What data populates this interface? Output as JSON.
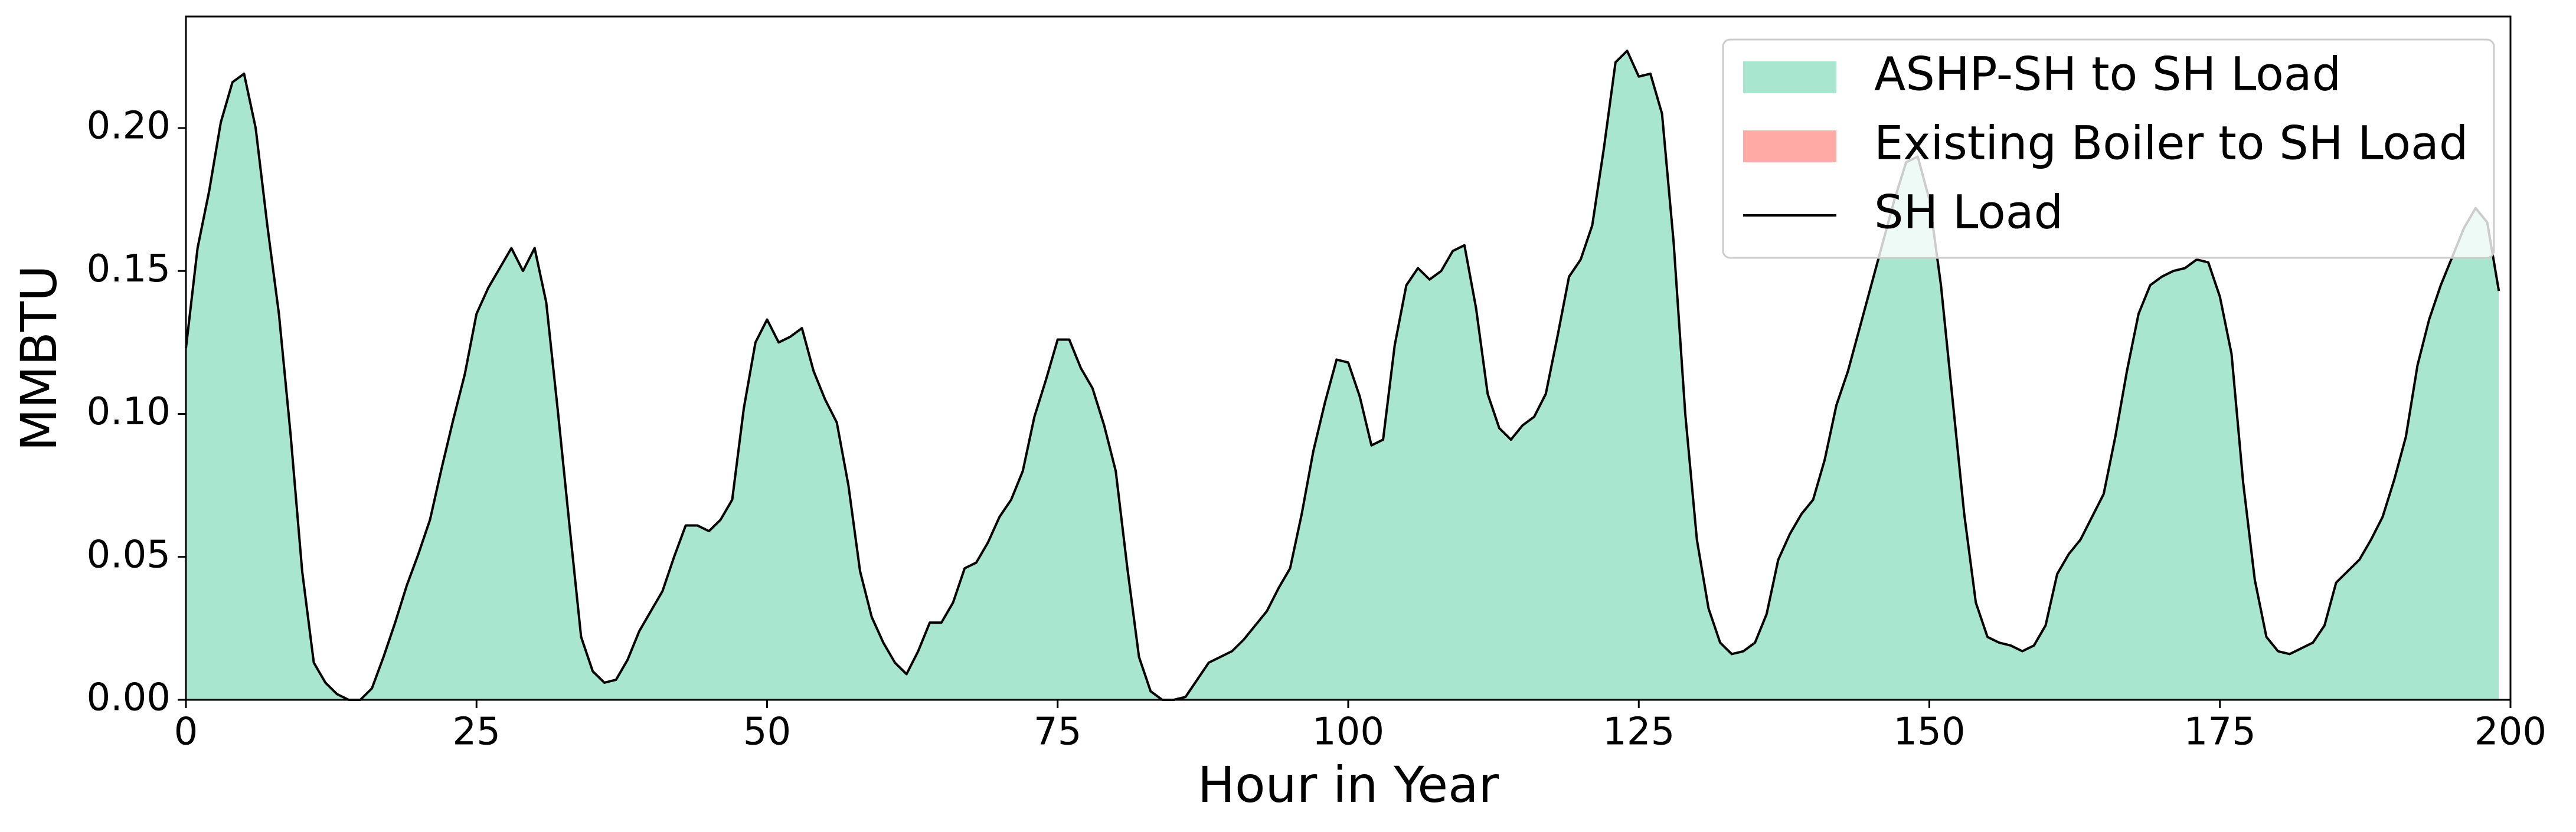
{
  "chart_data": {
    "type": "stacked_area",
    "x_label": "Hour in Year",
    "y_label": "MMBTU",
    "xlim": [
      0,
      200
    ],
    "ylim": [
      0,
      0.239
    ],
    "xticks": [
      0,
      25,
      50,
      75,
      100,
      125,
      150,
      175,
      200
    ],
    "yticks": [
      {
        "value": 0,
        "label": "0.00"
      },
      {
        "value": 0.05,
        "label": "0.05"
      },
      {
        "value": 0.1,
        "label": "0.10"
      },
      {
        "value": 0.15,
        "label": "0.15"
      },
      {
        "value": 0.2,
        "label": "0.20"
      }
    ],
    "legend": "upper right",
    "x": [
      0,
      1,
      2,
      3,
      4,
      5,
      6,
      7,
      8,
      9,
      10,
      11,
      12,
      13,
      14,
      15,
      16,
      17,
      18,
      19,
      20,
      21,
      22,
      23,
      24,
      25,
      26,
      27,
      28,
      29,
      30,
      31,
      32,
      33,
      34,
      35,
      36,
      37,
      38,
      39,
      40,
      41,
      42,
      43,
      44,
      45,
      46,
      47,
      48,
      49,
      50,
      51,
      52,
      53,
      54,
      55,
      56,
      57,
      58,
      59,
      60,
      61,
      62,
      63,
      64,
      65,
      66,
      67,
      68,
      69,
      70,
      71,
      72,
      73,
      74,
      75,
      76,
      77,
      78,
      79,
      80,
      81,
      82,
      83,
      84,
      85,
      86,
      87,
      88,
      89,
      90,
      91,
      92,
      93,
      94,
      95,
      96,
      97,
      98,
      99,
      100,
      101,
      102,
      103,
      104,
      105,
      106,
      107,
      108,
      109,
      110,
      111,
      112,
      113,
      114,
      115,
      116,
      117,
      118,
      119,
      120,
      121,
      122,
      123,
      124,
      125,
      126,
      127,
      128,
      129,
      130,
      131,
      132,
      133,
      134,
      135,
      136,
      137,
      138,
      139,
      140,
      141,
      142,
      143,
      144,
      145,
      146,
      147,
      148,
      149,
      150,
      151,
      152,
      153,
      154,
      155,
      156,
      157,
      158,
      159,
      160,
      161,
      162,
      163,
      164,
      165,
      166,
      167,
      168,
      169,
      170,
      171,
      172,
      173,
      174,
      175,
      176,
      177,
      178,
      179,
      180,
      181,
      182,
      183,
      184,
      185,
      186,
      187,
      188,
      189,
      190,
      191,
      192,
      193,
      194,
      195,
      196,
      197,
      198,
      199
    ],
    "series": [
      {
        "name": "ASHP-SH to SH Load",
        "color": "#a8e6cf",
        "kind": "area",
        "values": [
          0.123,
          0.158,
          0.178,
          0.202,
          0.216,
          0.219,
          0.2,
          0.166,
          0.135,
          0.093,
          0.045,
          0.013,
          0.006,
          0.002,
          0,
          0,
          0.004,
          0.015,
          0.027,
          0.04,
          0.051,
          0.063,
          0.081,
          0.098,
          0.114,
          0.135,
          0.144,
          0.151,
          0.158,
          0.15,
          0.158,
          0.139,
          0.101,
          0.061,
          0.022,
          0.01,
          0.006,
          0.007,
          0.014,
          0.024,
          0.031,
          0.038,
          0.05,
          0.061,
          0.061,
          0.059,
          0.063,
          0.07,
          0.102,
          0.125,
          0.133,
          0.125,
          0.127,
          0.13,
          0.115,
          0.105,
          0.097,
          0.075,
          0.045,
          0.029,
          0.02,
          0.013,
          0.009,
          0.017,
          0.027,
          0.027,
          0.034,
          0.046,
          0.048,
          0.055,
          0.064,
          0.07,
          0.08,
          0.099,
          0.112,
          0.126,
          0.126,
          0.116,
          0.109,
          0.096,
          0.08,
          0.046,
          0.015,
          0.003,
          0,
          0,
          0.001,
          0.007,
          0.013,
          0.015,
          0.017,
          0.021,
          0.026,
          0.031,
          0.039,
          0.046,
          0.065,
          0.087,
          0.104,
          0.119,
          0.118,
          0.106,
          0.089,
          0.091,
          0.124,
          0.145,
          0.151,
          0.147,
          0.15,
          0.157,
          0.159,
          0.137,
          0.107,
          0.095,
          0.091,
          0.096,
          0.099,
          0.107,
          0.127,
          0.148,
          0.154,
          0.166,
          0.193,
          0.223,
          0.227,
          0.218,
          0.219,
          0.205,
          0.16,
          0.1,
          0.056,
          0.032,
          0.02,
          0.016,
          0.017,
          0.02,
          0.03,
          0.049,
          0.058,
          0.065,
          0.07,
          0.084,
          0.103,
          0.115,
          0.13,
          0.145,
          0.16,
          0.175,
          0.188,
          0.19,
          0.175,
          0.145,
          0.105,
          0.065,
          0.034,
          0.022,
          0.02,
          0.019,
          0.017,
          0.019,
          0.026,
          0.044,
          0.051,
          0.056,
          0.064,
          0.072,
          0.092,
          0.115,
          0.135,
          0.145,
          0.148,
          0.15,
          0.151,
          0.154,
          0.153,
          0.141,
          0.121,
          0.076,
          0.042,
          0.022,
          0.017,
          0.016,
          0.018,
          0.02,
          0.026,
          0.041,
          0.045,
          0.049,
          0.056,
          0.064,
          0.077,
          0.092,
          0.117,
          0.133,
          0.145,
          0.155,
          0.165,
          0.172,
          0.167,
          0.143
        ]
      },
      {
        "name": "Existing Boiler to SH Load",
        "color": "#ffaaa5",
        "kind": "area",
        "values": [
          0,
          0,
          0,
          0,
          0,
          0,
          0,
          0,
          0,
          0,
          0,
          0,
          0,
          0,
          0,
          0,
          0,
          0,
          0,
          0,
          0,
          0,
          0,
          0,
          0,
          0,
          0,
          0,
          0,
          0,
          0,
          0,
          0,
          0,
          0,
          0,
          0,
          0,
          0,
          0,
          0,
          0,
          0,
          0,
          0,
          0,
          0,
          0,
          0,
          0,
          0,
          0,
          0,
          0,
          0,
          0,
          0,
          0,
          0,
          0,
          0,
          0,
          0,
          0,
          0,
          0,
          0,
          0,
          0,
          0,
          0,
          0,
          0,
          0,
          0,
          0,
          0,
          0,
          0,
          0,
          0,
          0,
          0,
          0,
          0,
          0,
          0,
          0,
          0,
          0,
          0,
          0,
          0,
          0,
          0,
          0,
          0,
          0,
          0,
          0,
          0,
          0,
          0,
          0,
          0,
          0,
          0,
          0,
          0,
          0,
          0,
          0,
          0,
          0,
          0,
          0,
          0,
          0,
          0,
          0,
          0,
          0,
          0,
          0,
          0,
          0,
          0,
          0,
          0,
          0,
          0,
          0,
          0,
          0,
          0,
          0,
          0,
          0,
          0,
          0,
          0,
          0,
          0,
          0,
          0,
          0,
          0,
          0,
          0,
          0,
          0,
          0,
          0,
          0,
          0,
          0,
          0,
          0,
          0,
          0,
          0,
          0,
          0,
          0,
          0,
          0,
          0,
          0,
          0,
          0,
          0,
          0,
          0,
          0,
          0,
          0,
          0,
          0,
          0,
          0,
          0,
          0,
          0,
          0,
          0,
          0,
          0,
          0,
          0,
          0,
          0,
          0,
          0,
          0,
          0,
          0,
          0,
          0,
          0,
          0
        ]
      },
      {
        "name": "SH Load",
        "color": "#000000",
        "kind": "line",
        "values": [
          0.123,
          0.158,
          0.178,
          0.202,
          0.216,
          0.219,
          0.2,
          0.166,
          0.135,
          0.093,
          0.045,
          0.013,
          0.006,
          0.002,
          0,
          0,
          0.004,
          0.015,
          0.027,
          0.04,
          0.051,
          0.063,
          0.081,
          0.098,
          0.114,
          0.135,
          0.144,
          0.151,
          0.158,
          0.15,
          0.158,
          0.139,
          0.101,
          0.061,
          0.022,
          0.01,
          0.006,
          0.007,
          0.014,
          0.024,
          0.031,
          0.038,
          0.05,
          0.061,
          0.061,
          0.059,
          0.063,
          0.07,
          0.102,
          0.125,
          0.133,
          0.125,
          0.127,
          0.13,
          0.115,
          0.105,
          0.097,
          0.075,
          0.045,
          0.029,
          0.02,
          0.013,
          0.009,
          0.017,
          0.027,
          0.027,
          0.034,
          0.046,
          0.048,
          0.055,
          0.064,
          0.07,
          0.08,
          0.099,
          0.112,
          0.126,
          0.126,
          0.116,
          0.109,
          0.096,
          0.08,
          0.046,
          0.015,
          0.003,
          0,
          0,
          0.001,
          0.007,
          0.013,
          0.015,
          0.017,
          0.021,
          0.026,
          0.031,
          0.039,
          0.046,
          0.065,
          0.087,
          0.104,
          0.119,
          0.118,
          0.106,
          0.089,
          0.091,
          0.124,
          0.145,
          0.151,
          0.147,
          0.15,
          0.157,
          0.159,
          0.137,
          0.107,
          0.095,
          0.091,
          0.096,
          0.099,
          0.107,
          0.127,
          0.148,
          0.154,
          0.166,
          0.193,
          0.223,
          0.227,
          0.218,
          0.219,
          0.205,
          0.16,
          0.1,
          0.056,
          0.032,
          0.02,
          0.016,
          0.017,
          0.02,
          0.03,
          0.049,
          0.058,
          0.065,
          0.07,
          0.084,
          0.103,
          0.115,
          0.13,
          0.145,
          0.16,
          0.175,
          0.188,
          0.19,
          0.175,
          0.145,
          0.105,
          0.065,
          0.034,
          0.022,
          0.02,
          0.019,
          0.017,
          0.019,
          0.026,
          0.044,
          0.051,
          0.056,
          0.064,
          0.072,
          0.092,
          0.115,
          0.135,
          0.145,
          0.148,
          0.15,
          0.151,
          0.154,
          0.153,
          0.141,
          0.121,
          0.076,
          0.042,
          0.022,
          0.017,
          0.016,
          0.018,
          0.02,
          0.026,
          0.041,
          0.045,
          0.049,
          0.056,
          0.064,
          0.077,
          0.092,
          0.117,
          0.133,
          0.145,
          0.155,
          0.165,
          0.172,
          0.167,
          0.143
        ]
      }
    ]
  }
}
